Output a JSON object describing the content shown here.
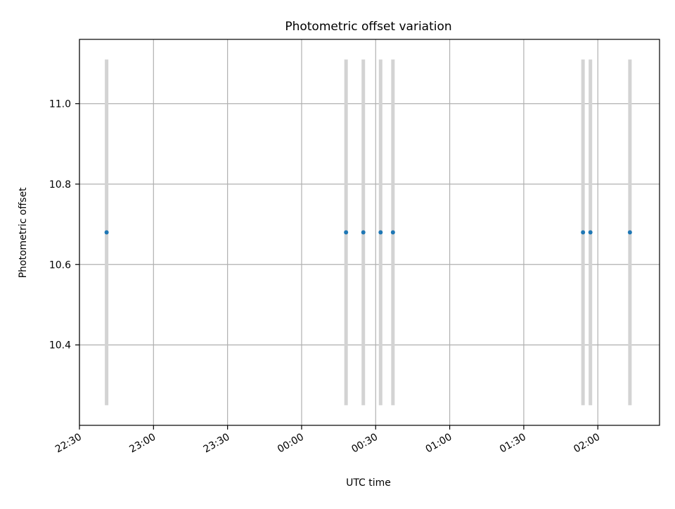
{
  "chart_data": {
    "type": "scatter",
    "title": "Photometric offset variation",
    "xlabel": "UTC time",
    "ylabel": "Photometric offset",
    "xlim": [
      "22:30",
      "02:25"
    ],
    "ylim": [
      10.2,
      11.16
    ],
    "x_ticks": [
      "22:30",
      "23:00",
      "23:30",
      "00:00",
      "00:30",
      "01:00",
      "01:30",
      "02:00"
    ],
    "y_ticks": [
      "10.4",
      "10.6",
      "10.8",
      "11.0"
    ],
    "grid": true,
    "x": [
      "22:41",
      "00:18",
      "00:25",
      "00:32",
      "00:37",
      "01:54",
      "01:57",
      "02:13"
    ],
    "y": [
      10.68,
      10.68,
      10.68,
      10.68,
      10.68,
      10.68,
      10.68,
      10.68
    ],
    "error_low": [
      10.25,
      10.25,
      10.25,
      10.25,
      10.25,
      10.25,
      10.25,
      10.25
    ],
    "error_high": [
      11.11,
      11.11,
      11.11,
      11.11,
      11.11,
      11.11,
      11.11,
      11.11
    ],
    "point_color": "#1f77b4",
    "errorbar_color": "#d3d3d3",
    "grid_color": "#b0b0b0"
  }
}
